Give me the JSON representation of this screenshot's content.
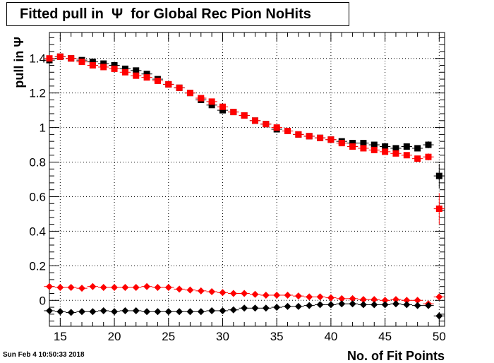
{
  "title": "Fitted pull in  Ψ  for Global Rec Pion NoHits",
  "footer_stamp": "Sun Feb  4 10:50:33 2018",
  "chart_data": {
    "type": "scatter",
    "xlabel": "No. of Fit Points",
    "ylabel": "pull in  Ψ",
    "xlim": [
      14,
      50.5
    ],
    "ylim": [
      -0.15,
      1.55
    ],
    "xticks": [
      15,
      20,
      25,
      30,
      35,
      40,
      45,
      50
    ],
    "yticks": [
      0,
      0.2,
      0.4,
      0.6,
      0.8,
      1,
      1.2,
      1.4
    ],
    "ytick_labels": [
      "0",
      "0.2",
      "0.4",
      "0.6",
      "0.8",
      "1",
      "1.2",
      "1.4"
    ],
    "grid": true,
    "series": [
      {
        "marker": "square",
        "color": "#000000",
        "x": [
          14,
          15,
          16,
          17,
          18,
          19,
          20,
          21,
          22,
          23,
          24,
          25,
          26,
          27,
          28,
          29,
          30,
          31,
          32,
          33,
          34,
          35,
          36,
          37,
          38,
          39,
          40,
          41,
          42,
          43,
          44,
          45,
          46,
          47,
          48,
          49,
          50
        ],
        "y": [
          1.39,
          1.41,
          1.4,
          1.39,
          1.38,
          1.37,
          1.36,
          1.34,
          1.33,
          1.31,
          1.28,
          1.25,
          1.23,
          1.2,
          1.16,
          1.13,
          1.1,
          1.09,
          1.07,
          1.04,
          1.02,
          0.99,
          0.98,
          0.96,
          0.95,
          0.94,
          0.93,
          0.92,
          0.91,
          0.91,
          0.9,
          0.89,
          0.88,
          0.89,
          0.88,
          0.9,
          0.72
        ],
        "yerr": [
          0.01,
          0.01,
          0.01,
          0.01,
          0.01,
          0.01,
          0.01,
          0.01,
          0.01,
          0.01,
          0.01,
          0.01,
          0.01,
          0.01,
          0.01,
          0.01,
          0.01,
          0.01,
          0.01,
          0.01,
          0.01,
          0.01,
          0.01,
          0.01,
          0.01,
          0.01,
          0.01,
          0.01,
          0.01,
          0.01,
          0.01,
          0.01,
          0.01,
          0.01,
          0.015,
          0.02,
          0.07
        ]
      },
      {
        "marker": "square",
        "color": "#ff0000",
        "x": [
          14,
          15,
          16,
          17,
          18,
          19,
          20,
          21,
          22,
          23,
          24,
          25,
          26,
          27,
          28,
          29,
          30,
          31,
          32,
          33,
          34,
          35,
          36,
          37,
          38,
          39,
          40,
          41,
          42,
          43,
          44,
          45,
          46,
          47,
          48,
          49,
          50
        ],
        "y": [
          1.4,
          1.41,
          1.4,
          1.38,
          1.36,
          1.35,
          1.34,
          1.32,
          1.3,
          1.29,
          1.27,
          1.25,
          1.23,
          1.2,
          1.17,
          1.15,
          1.12,
          1.09,
          1.07,
          1.04,
          1.02,
          1.0,
          0.98,
          0.96,
          0.95,
          0.94,
          0.93,
          0.91,
          0.89,
          0.88,
          0.87,
          0.86,
          0.85,
          0.84,
          0.82,
          0.83,
          0.53
        ],
        "yerr": [
          0.01,
          0.01,
          0.01,
          0.01,
          0.01,
          0.01,
          0.01,
          0.01,
          0.01,
          0.01,
          0.01,
          0.01,
          0.01,
          0.01,
          0.01,
          0.01,
          0.01,
          0.01,
          0.01,
          0.01,
          0.01,
          0.01,
          0.01,
          0.01,
          0.01,
          0.01,
          0.01,
          0.01,
          0.01,
          0.01,
          0.01,
          0.01,
          0.01,
          0.01,
          0.015,
          0.02,
          0.09
        ]
      },
      {
        "marker": "diamond",
        "color": "#ff0000",
        "x": [
          14,
          15,
          16,
          17,
          18,
          19,
          20,
          21,
          22,
          23,
          24,
          25,
          26,
          27,
          28,
          29,
          30,
          31,
          32,
          33,
          34,
          35,
          36,
          37,
          38,
          39,
          40,
          41,
          42,
          43,
          44,
          45,
          46,
          47,
          48,
          49,
          50
        ],
        "y": [
          0.08,
          0.075,
          0.075,
          0.07,
          0.08,
          0.075,
          0.075,
          0.075,
          0.075,
          0.08,
          0.075,
          0.075,
          0.065,
          0.06,
          0.055,
          0.05,
          0.045,
          0.04,
          0.04,
          0.035,
          0.03,
          0.03,
          0.03,
          0.025,
          0.02,
          0.02,
          0.015,
          0.01,
          0.01,
          0.005,
          0.005,
          0.0,
          0.005,
          0.0,
          0.0,
          -0.02,
          0.02
        ],
        "yerr": [
          0.01,
          0.01,
          0.01,
          0.01,
          0.01,
          0.01,
          0.01,
          0.01,
          0.01,
          0.01,
          0.01,
          0.01,
          0.01,
          0.01,
          0.01,
          0.01,
          0.01,
          0.01,
          0.01,
          0.01,
          0.01,
          0.01,
          0.01,
          0.01,
          0.01,
          0.01,
          0.01,
          0.01,
          0.01,
          0.01,
          0.01,
          0.01,
          0.01,
          0.01,
          0.01,
          0.015,
          0.02
        ]
      },
      {
        "marker": "diamond",
        "color": "#000000",
        "x": [
          14,
          15,
          16,
          17,
          18,
          19,
          20,
          21,
          22,
          23,
          24,
          25,
          26,
          27,
          28,
          29,
          30,
          31,
          32,
          33,
          34,
          35,
          36,
          37,
          38,
          39,
          40,
          41,
          42,
          43,
          44,
          45,
          46,
          47,
          48,
          49,
          50
        ],
        "y": [
          -0.06,
          -0.065,
          -0.07,
          -0.065,
          -0.065,
          -0.06,
          -0.065,
          -0.06,
          -0.06,
          -0.065,
          -0.065,
          -0.065,
          -0.065,
          -0.065,
          -0.065,
          -0.06,
          -0.06,
          -0.055,
          -0.045,
          -0.045,
          -0.045,
          -0.04,
          -0.035,
          -0.035,
          -0.03,
          -0.025,
          -0.025,
          -0.02,
          -0.02,
          -0.025,
          -0.025,
          -0.025,
          -0.02,
          -0.025,
          -0.03,
          -0.03,
          -0.09
        ],
        "yerr": [
          0.01,
          0.01,
          0.01,
          0.01,
          0.01,
          0.01,
          0.01,
          0.01,
          0.01,
          0.01,
          0.01,
          0.01,
          0.01,
          0.01,
          0.01,
          0.01,
          0.01,
          0.01,
          0.01,
          0.01,
          0.01,
          0.01,
          0.01,
          0.01,
          0.01,
          0.01,
          0.01,
          0.01,
          0.01,
          0.01,
          0.01,
          0.01,
          0.01,
          0.01,
          0.01,
          0.015,
          0.02
        ]
      }
    ]
  }
}
